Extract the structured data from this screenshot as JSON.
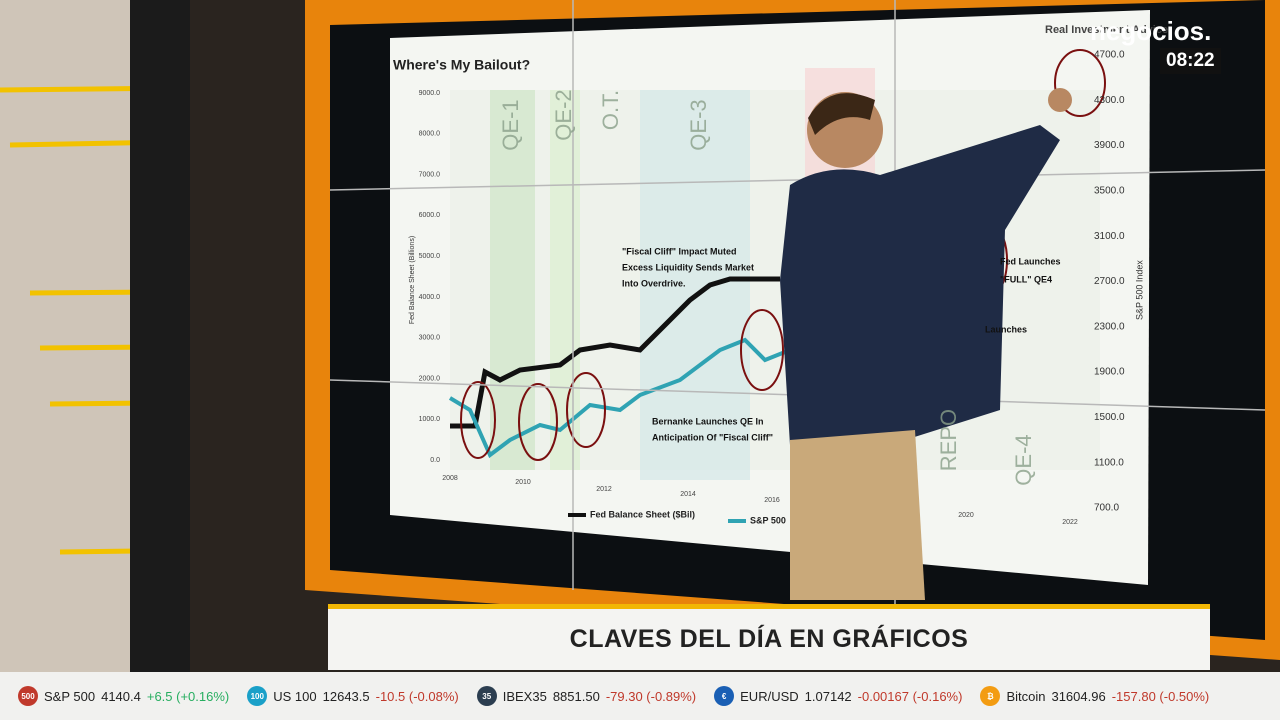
{
  "broadcast": {
    "logo": "negocios.",
    "clock": "08:22",
    "banner": "CLAVES DEL DÍA EN GRÁFICOS"
  },
  "slide": {
    "title": "Where's My Bailout?",
    "brand": "Real Investment Advice",
    "left_axis_label": "Fed Balance Sheet (Billions)",
    "right_axis_label": "S&P 500 Index",
    "left_ticks": [
      "9000.0",
      "8000.0",
      "7000.0",
      "6000.0",
      "5000.0",
      "4000.0",
      "3000.0",
      "2000.0",
      "1000.0",
      "0.0"
    ],
    "right_ticks": [
      "4700.0",
      "4300.0",
      "3900.0",
      "3500.0",
      "3100.0",
      "2700.0",
      "2300.0",
      "1900.0",
      "1500.0",
      "1100.0",
      "700.0"
    ],
    "years": [
      "2008",
      "2010",
      "2012",
      "2014",
      "2016",
      "2020",
      "2022"
    ],
    "bands": [
      "QE-1",
      "QE-2",
      "O.T.",
      "QE-3",
      "REPO",
      "QE-4"
    ],
    "annotations": [
      "\"Fiscal Cliff\" Impact Muted",
      "Excess Liquidity Sends Market",
      "Into Overdrive.",
      "Bernanke Launches QE In",
      "Anticipation Of \"Fiscal Cliff\"",
      "Fed Launches",
      "\"FULL\" QE4",
      "Launches"
    ],
    "legend": [
      "Fed Balance Sheet ($Bil)",
      "S&P 500"
    ]
  },
  "ticker": [
    {
      "badge": "500",
      "name": "S&P 500",
      "value": "4140.4",
      "change": "+6.5 (+0.16%)"
    },
    {
      "badge": "100",
      "name": "US 100",
      "value": "12643.5",
      "change": "-10.5 (-0.08%)"
    },
    {
      "badge": "35",
      "name": "IBEX35",
      "value": "8851.50",
      "change": "-79.30 (-0.89%)"
    },
    {
      "badge": "€",
      "name": "EUR/USD",
      "value": "1.07142",
      "change": "-0.00167 (-0.16%)"
    },
    {
      "badge": "₿",
      "name": "Bitcoin",
      "value": "31604.96",
      "change": "-157.80 (-0.50%)"
    }
  ]
}
